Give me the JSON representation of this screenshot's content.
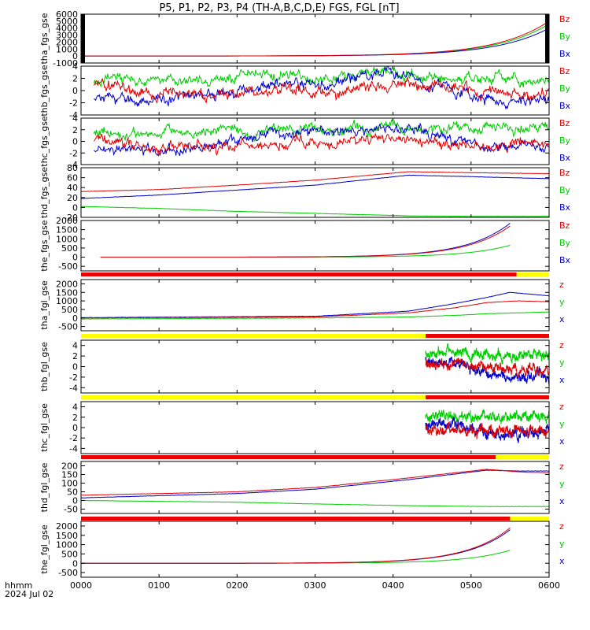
{
  "title": "P5, P1, P2, P3, P4 (TH-A,B,C,D,E) FGS, FGL [nT]",
  "footer": {
    "hhmm": "hhmm",
    "date": "2024 Jul 02"
  },
  "colors": {
    "z": "#e00000",
    "y": "#00cc00",
    "x": "#0000cc",
    "bar_red": "#ee0000",
    "bar_yellow": "#ffff00",
    "axis": "#000000"
  },
  "chart_data": {
    "type": "line",
    "xaxis": {
      "range_minutes": [
        0,
        360
      ],
      "ticks": [
        "0000",
        "0100",
        "0200",
        "0300",
        "0400",
        "0500",
        "0600"
      ]
    },
    "panels": [
      {
        "ylabel": "tha_fgs_gse",
        "legend": [
          "Bz",
          "By",
          "Bx"
        ],
        "ylim": [
          -1000,
          6000
        ],
        "yticks": [
          "6000",
          "5000",
          "4000",
          "3000",
          "2000",
          "1000",
          "0",
          "-1000"
        ],
        "yticks_values": [
          6000,
          5000,
          4000,
          3000,
          2000,
          1000,
          0,
          -1000
        ],
        "data_start": 0,
        "style": "exp",
        "exp": {
          "end": [
            5000,
            4600,
            4000
          ],
          "k": 0.025
        },
        "blackbars": true
      },
      {
        "ylabel": "thb_fgs_gse",
        "legend": [
          "Bz",
          "By",
          "Bx"
        ],
        "ylim": [
          -4,
          4
        ],
        "yticks": [
          "4",
          "2",
          "0",
          "-2",
          "-4"
        ],
        "yticks_values": [
          4,
          2,
          0,
          -2,
          -4
        ],
        "data_start": 10,
        "style": "noise",
        "levels": {
          "z": [
            [
              0,
              1.5
            ],
            [
              30,
              0.5
            ],
            [
              120,
              -0.5
            ],
            [
              210,
              -0.5
            ],
            [
              260,
              0.5
            ],
            [
              320,
              -0.5
            ],
            [
              400,
              0.8
            ],
            [
              460,
              0.4
            ],
            [
              540,
              -0.5
            ],
            [
              600,
              -0.5
            ]
          ],
          "y": [
            [
              0,
              1.0
            ],
            [
              30,
              2.0
            ],
            [
              120,
              1.5
            ],
            [
              210,
              3.0
            ],
            [
              260,
              2.8
            ],
            [
              320,
              2.0
            ],
            [
              400,
              2.8
            ],
            [
              460,
              2.2
            ],
            [
              540,
              2.0
            ],
            [
              600,
              2.0
            ]
          ],
          "x": [
            [
              0,
              -1.0
            ],
            [
              30,
              -1.2
            ],
            [
              120,
              -1.5
            ],
            [
              210,
              0.5
            ],
            [
              260,
              1.2
            ],
            [
              320,
              1.5
            ],
            [
              400,
              2.5
            ],
            [
              460,
              0.5
            ],
            [
              540,
              -2.0
            ],
            [
              600,
              -1.5
            ]
          ]
        }
      },
      {
        "ylabel": "thc_fgs_gse",
        "legend": [
          "Bz",
          "By",
          "Bx"
        ],
        "ylim": [
          -4,
          4
        ],
        "yticks": [
          "4",
          "2",
          "0",
          "-2",
          "-4"
        ],
        "yticks_values": [
          4,
          2,
          0,
          -2,
          -4
        ],
        "data_start": 10,
        "style": "noise",
        "levels": {
          "z": [
            [
              0,
              1.0
            ],
            [
              30,
              -0.5
            ],
            [
              120,
              -1.0
            ],
            [
              210,
              -0.5
            ],
            [
              260,
              0.0
            ],
            [
              320,
              -0.5
            ],
            [
              400,
              0.3
            ],
            [
              460,
              -0.2
            ],
            [
              540,
              -0.8
            ],
            [
              600,
              -0.8
            ]
          ],
          "y": [
            [
              0,
              2.0
            ],
            [
              30,
              1.5
            ],
            [
              120,
              1.5
            ],
            [
              210,
              2.0
            ],
            [
              260,
              2.2
            ],
            [
              320,
              2.2
            ],
            [
              400,
              2.5
            ],
            [
              460,
              2.0
            ],
            [
              540,
              2.0
            ],
            [
              600,
              2.0
            ]
          ],
          "x": [
            [
              0,
              -1.0
            ],
            [
              30,
              -1.5
            ],
            [
              120,
              -1.5
            ],
            [
              210,
              0.5
            ],
            [
              260,
              1.5
            ],
            [
              320,
              1.8
            ],
            [
              400,
              2.0
            ],
            [
              460,
              0.5
            ],
            [
              540,
              -1.5
            ],
            [
              600,
              -1.0
            ]
          ]
        }
      },
      {
        "ylabel": "thd_fgs_gse",
        "legend": [
          "Bz",
          "By",
          "Bx"
        ],
        "ylim": [
          -20,
          80
        ],
        "yticks": [
          "80",
          "60",
          "40",
          "20",
          "0",
          "-20"
        ],
        "yticks_values": [
          80,
          60,
          40,
          20,
          0,
          -20
        ],
        "data_start": 0,
        "style": "smooth",
        "series": {
          "z": [
            [
              0,
              32
            ],
            [
              100,
              36
            ],
            [
              200,
              45
            ],
            [
              300,
              55
            ],
            [
              420,
              72
            ],
            [
              500,
              70
            ],
            [
              600,
              68
            ]
          ],
          "y": [
            [
              0,
              2
            ],
            [
              100,
              -2
            ],
            [
              200,
              -8
            ],
            [
              300,
              -12
            ],
            [
              420,
              -17
            ],
            [
              500,
              -18
            ],
            [
              600,
              -18
            ]
          ],
          "x": [
            [
              0,
              18
            ],
            [
              100,
              25
            ],
            [
              200,
              35
            ],
            [
              300,
              45
            ],
            [
              420,
              65
            ],
            [
              500,
              62
            ],
            [
              600,
              58
            ]
          ]
        }
      },
      {
        "ylabel": "the_fgs_gse",
        "legend": [
          "Bz",
          "By",
          "Bx"
        ],
        "ylim": [
          -750,
          2000
        ],
        "yticks": [
          "2000",
          "1500",
          "1000",
          "500",
          "0",
          "-500"
        ],
        "yticks_values": [
          2000,
          1500,
          1000,
          500,
          0,
          -500
        ],
        "data_start": 15,
        "data_end": 330,
        "style": "exp",
        "exp": {
          "end": [
            1700,
            650,
            1850
          ],
          "k": 0.03
        }
      },
      {
        "ylabel": "tha_fgl_gse",
        "legend": [
          "z",
          "y",
          "x"
        ],
        "ylim": [
          -750,
          2250
        ],
        "yticks": [
          "2000",
          "1500",
          "1000",
          "500",
          "0",
          "-500"
        ],
        "yticks_values": [
          2000,
          1500,
          1000,
          500,
          0,
          -500
        ],
        "data_start": 0,
        "style": "smooth",
        "series": {
          "z": [
            [
              0,
              0
            ],
            [
              300,
              60
            ],
            [
              420,
              300
            ],
            [
              480,
              600
            ],
            [
              520,
              900
            ],
            [
              560,
              1000
            ],
            [
              600,
              950
            ]
          ],
          "y": [
            [
              0,
              -60
            ],
            [
              300,
              0
            ],
            [
              420,
              60
            ],
            [
              480,
              150
            ],
            [
              520,
              250
            ],
            [
              560,
              300
            ],
            [
              600,
              350
            ]
          ],
          "x": [
            [
              0,
              20
            ],
            [
              300,
              100
            ],
            [
              420,
              400
            ],
            [
              480,
              850
            ],
            [
              520,
              1200
            ],
            [
              550,
              1500
            ],
            [
              600,
              1300
            ]
          ]
        }
      },
      {
        "ylabel": "thb_fgl_gse",
        "legend": [
          "z",
          "y",
          "x"
        ],
        "ylim": [
          -5,
          5
        ],
        "yticks": [
          "4",
          "2",
          "0",
          "-2",
          "-4"
        ],
        "yticks_values": [
          4,
          2,
          0,
          -2,
          -4
        ],
        "data_start": 265,
        "style": "noise",
        "levels": {
          "z": [
            [
              0,
              0.5
            ],
            [
              480,
              0.5
            ],
            [
              540,
              -0.5
            ],
            [
              600,
              -0.5
            ]
          ],
          "y": [
            [
              0,
              2.0
            ],
            [
              480,
              2.8
            ],
            [
              540,
              2.0
            ],
            [
              600,
              2.0
            ]
          ],
          "x": [
            [
              0,
              1.0
            ],
            [
              480,
              0.8
            ],
            [
              540,
              -2.2
            ],
            [
              600,
              -1.5
            ]
          ]
        }
      },
      {
        "ylabel": "thc_fgl_gse",
        "legend": [
          "z",
          "y",
          "x"
        ],
        "ylim": [
          -5,
          5
        ],
        "yticks": [
          "4",
          "2",
          "0",
          "-2",
          "-4"
        ],
        "yticks_values": [
          4,
          2,
          0,
          -2,
          -4
        ],
        "data_start": 265,
        "style": "noise",
        "levels": {
          "z": [
            [
              0,
              -1.5
            ],
            [
              480,
              -0.5
            ],
            [
              540,
              -0.8
            ],
            [
              600,
              -0.5
            ]
          ],
          "y": [
            [
              0,
              2.5
            ],
            [
              480,
              2.2
            ],
            [
              540,
              2.0
            ],
            [
              600,
              2.0
            ]
          ],
          "x": [
            [
              0,
              1.0
            ],
            [
              480,
              0.5
            ],
            [
              540,
              -1.5
            ],
            [
              600,
              -0.8
            ]
          ]
        }
      },
      {
        "ylabel": "thd_fgl_gse",
        "legend": [
          "z",
          "y",
          "x"
        ],
        "ylim": [
          -75,
          225
        ],
        "yticks": [
          "200",
          "150",
          "100",
          "50",
          "0",
          "-50"
        ],
        "yticks_values": [
          200,
          150,
          100,
          50,
          0,
          -50
        ],
        "data_start": 0,
        "style": "smooth",
        "series": {
          "z": [
            [
              0,
              30
            ],
            [
              200,
              50
            ],
            [
              300,
              75
            ],
            [
              420,
              130
            ],
            [
              520,
              180
            ],
            [
              560,
              165
            ],
            [
              600,
              160
            ]
          ],
          "y": [
            [
              0,
              0
            ],
            [
              200,
              -10
            ],
            [
              300,
              -20
            ],
            [
              420,
              -30
            ],
            [
              520,
              -35
            ],
            [
              600,
              -35
            ]
          ],
          "x": [
            [
              0,
              15
            ],
            [
              200,
              40
            ],
            [
              300,
              65
            ],
            [
              420,
              120
            ],
            [
              520,
              175
            ],
            [
              560,
              170
            ],
            [
              600,
              170
            ]
          ]
        }
      },
      {
        "ylabel": "the_fgl_gse",
        "legend": [
          "z",
          "y",
          "x"
        ],
        "ylim": [
          -750,
          2250
        ],
        "yticks": [
          "2000",
          "1500",
          "1000",
          "500",
          "0",
          "-500"
        ],
        "yticks_values": [
          2000,
          1500,
          1000,
          500,
          0,
          -500
        ],
        "data_start": 0,
        "data_end": 330,
        "style": "exp",
        "exp": {
          "end": [
            1900,
            700,
            1800
          ],
          "k": 0.03
        }
      }
    ],
    "mode_bars": [
      {
        "after_panel": 4,
        "segments": [
          [
            0,
            335,
            "red"
          ],
          [
            335,
            360,
            "yellow"
          ]
        ]
      },
      {
        "after_panel": 5,
        "segments": [
          [
            0,
            265,
            "yellow"
          ],
          [
            265,
            360,
            "red"
          ]
        ]
      },
      {
        "after_panel": 6,
        "segments": [
          [
            0,
            265,
            "yellow"
          ],
          [
            265,
            360,
            "red"
          ]
        ]
      },
      {
        "after_panel": 7,
        "segments": [
          [
            0,
            319,
            "red"
          ],
          [
            319,
            360,
            "yellow"
          ]
        ]
      },
      {
        "after_panel": 8,
        "segments": [
          [
            0,
            330,
            "red"
          ],
          [
            330,
            360,
            "yellow"
          ]
        ]
      }
    ]
  }
}
